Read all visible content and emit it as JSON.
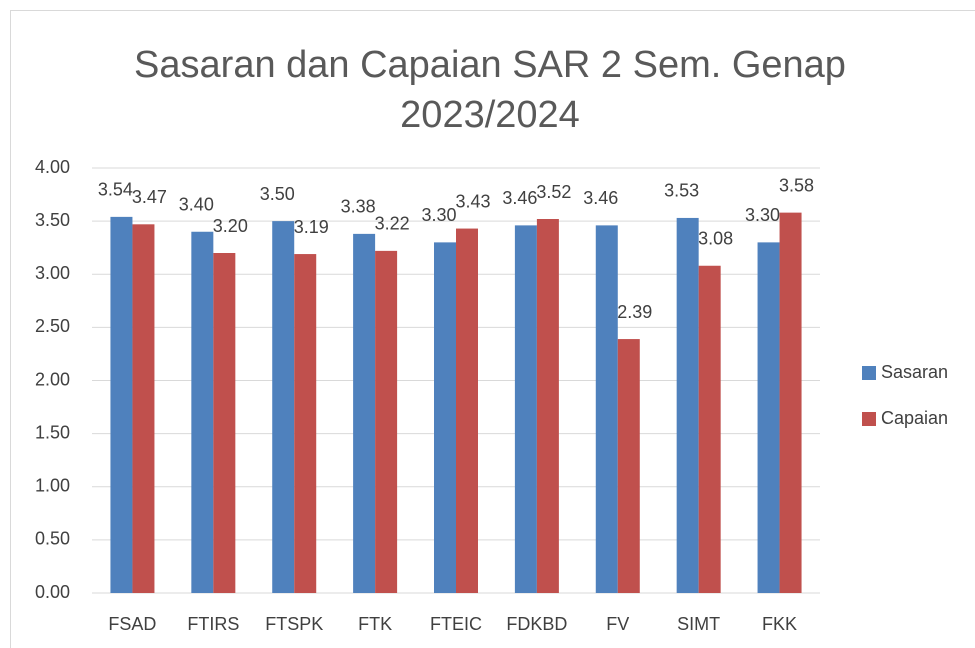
{
  "chart_data": {
    "type": "bar",
    "title": "Sasaran dan Capaian SAR 2 Sem. Genap 2023/2024",
    "categories": [
      "FSAD",
      "FTIRS",
      "FTSPK",
      "FTK",
      "FTEIC",
      "FDKBD",
      "FV",
      "SIMT",
      "FKK"
    ],
    "series": [
      {
        "name": "Sasaran",
        "color": "#4f81bd",
        "values": [
          3.54,
          3.4,
          3.5,
          3.38,
          3.3,
          3.46,
          3.46,
          3.53,
          3.3
        ],
        "value_labels": [
          "3.54",
          "3.40",
          "3.50",
          "3.38",
          "3.30",
          "3.46",
          "3.46",
          "3.53",
          "3.30"
        ]
      },
      {
        "name": "Capaian",
        "color": "#c0504d",
        "values": [
          3.47,
          3.2,
          3.19,
          3.22,
          3.43,
          3.52,
          2.39,
          3.08,
          3.58
        ],
        "value_labels": [
          "3.47",
          "3.20",
          "3.19",
          "3.22",
          "3.43",
          "3.52",
          "2.39",
          "3.08",
          "3.58"
        ]
      }
    ],
    "ylim": [
      0,
      4
    ],
    "yticks": [
      {
        "value": 0,
        "label": "0.00"
      },
      {
        "value": 0.5,
        "label": "0.50"
      },
      {
        "value": 1,
        "label": "1.00"
      },
      {
        "value": 1.5,
        "label": "1.50"
      },
      {
        "value": 2,
        "label": "2.00"
      },
      {
        "value": 2.5,
        "label": "2.50"
      },
      {
        "value": 3,
        "label": "3.00"
      },
      {
        "value": 3.5,
        "label": "3.50"
      },
      {
        "value": 4,
        "label": "4.00"
      }
    ],
    "grid": true,
    "legend": "right"
  }
}
